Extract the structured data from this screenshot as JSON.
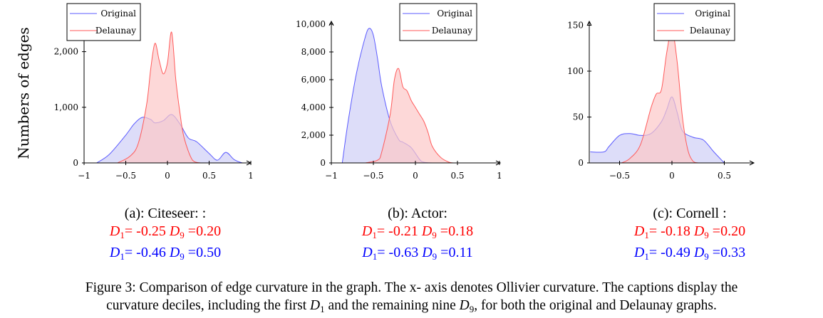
{
  "y_axis_label": "Numbers of edges",
  "legend": {
    "original": "Original",
    "delaunay": "Delaunay"
  },
  "colors": {
    "original_line": "#5b5bff",
    "original_fill": "#cfcff7",
    "delaunay_line": "#ff5a5a",
    "delaunay_fill": "#fcc7c7"
  },
  "panels": [
    {
      "caption": "(a): Citeseer: :",
      "delaunay_stats": {
        "d1": "-0.25",
        "d9": "0.20"
      },
      "original_stats": {
        "d1": "-0.46",
        "d9": "0.50"
      }
    },
    {
      "caption": "(b): Actor:",
      "delaunay_stats": {
        "d1": "-0.21",
        "d9": "0.18"
      },
      "original_stats": {
        "d1": "-0.63",
        "d9": "0.11"
      }
    },
    {
      "caption": "(c): Cornell :",
      "delaunay_stats": {
        "d1": "-0.18",
        "d9": "0.20"
      },
      "original_stats": {
        "d1": "-0.49",
        "d9": "0.33"
      }
    }
  ],
  "figure_caption": {
    "line1": "Figure 3: Comparison of edge curvature in the graph. The x- axis denotes Ollivier curvature. The captions display the",
    "line2_a": "curvature deciles, including the first ",
    "line2_b": " and the remaining nine ",
    "line2_c": ", for both the original and Delaunay graphs.",
    "d1_symbol": "D",
    "d1_sub": "1",
    "d9_symbol": "D",
    "d9_sub": "9"
  },
  "chart_data": [
    {
      "type": "area",
      "title": "(a): Citeseer: :",
      "xlabel": "",
      "ylabel": "Numbers of edges",
      "xlim": [
        -1,
        1
      ],
      "ylim": [
        0,
        2000
      ],
      "xticks": [
        -1,
        -0.5,
        0,
        0.5,
        1
      ],
      "xtick_labels": [
        "−1",
        "−0.5",
        "0",
        "0.5",
        "1"
      ],
      "yticks": [
        0,
        1000,
        2000
      ],
      "ytick_labels": [
        "0",
        "1,000",
        "2,000"
      ],
      "legend_position": "top",
      "series": [
        {
          "name": "Original",
          "x": [
            -0.85,
            -0.7,
            -0.5,
            -0.4,
            -0.3,
            -0.2,
            -0.15,
            -0.05,
            0.05,
            0.15,
            0.25,
            0.35,
            0.5,
            0.6,
            0.7,
            0.8,
            0.9,
            0.95
          ],
          "values": [
            0,
            150,
            500,
            700,
            820,
            780,
            720,
            760,
            870,
            700,
            450,
            380,
            170,
            50,
            190,
            60,
            0,
            0
          ]
        },
        {
          "name": "Delaunay",
          "x": [
            -0.6,
            -0.45,
            -0.35,
            -0.25,
            -0.2,
            -0.15,
            -0.1,
            -0.05,
            0,
            0.05,
            0.1,
            0.15,
            0.2,
            0.3,
            0.4,
            0.5
          ],
          "values": [
            0,
            120,
            350,
            1050,
            1700,
            2150,
            1850,
            1600,
            1800,
            2350,
            1500,
            900,
            450,
            50,
            0,
            0
          ]
        }
      ]
    },
    {
      "type": "area",
      "title": "(b): Actor:",
      "xlabel": "",
      "ylabel": "",
      "xlim": [
        -1,
        1
      ],
      "ylim": [
        0,
        10000
      ],
      "xticks": [
        -1,
        -0.5,
        0,
        0.5,
        1
      ],
      "xtick_labels": [
        "−1",
        "−0.5",
        "0",
        "0.5",
        "1"
      ],
      "yticks": [
        0,
        2000,
        4000,
        6000,
        8000,
        10000
      ],
      "ytick_labels": [
        "0",
        "2,000",
        "4,000",
        "6,000",
        "8,000",
        "10,000"
      ],
      "legend_position": "top-right",
      "series": [
        {
          "name": "Original",
          "x": [
            -0.87,
            -0.8,
            -0.7,
            -0.6,
            -0.55,
            -0.5,
            -0.45,
            -0.4,
            -0.3,
            -0.2,
            -0.15,
            -0.05,
            0.05,
            0.1,
            0.2,
            0.3
          ],
          "values": [
            0,
            3000,
            6500,
            9000,
            9700,
            9200,
            7500,
            5500,
            3000,
            1700,
            1500,
            1100,
            250,
            50,
            0,
            0
          ]
        },
        {
          "name": "Delaunay",
          "x": [
            -0.6,
            -0.45,
            -0.4,
            -0.3,
            -0.25,
            -0.2,
            -0.15,
            -0.1,
            -0.05,
            0,
            0.05,
            0.1,
            0.15,
            0.2,
            0.3,
            0.4,
            0.45
          ],
          "values": [
            0,
            200,
            800,
            3500,
            6000,
            6800,
            5500,
            5200,
            4500,
            4000,
            3500,
            3000,
            2200,
            1200,
            400,
            50,
            0
          ]
        }
      ]
    },
    {
      "type": "area",
      "title": "(c): Cornell :",
      "xlabel": "",
      "ylabel": "",
      "xlim": [
        -0.8,
        0.85
      ],
      "ylim": [
        0,
        150
      ],
      "xticks": [
        -0.5,
        0,
        0.5
      ],
      "xtick_labels": [
        "−0.5",
        "0",
        "0.5"
      ],
      "yticks": [
        0,
        50,
        100,
        150
      ],
      "ytick_labels": [
        "0",
        "50",
        "100",
        "150"
      ],
      "legend_position": "top-right",
      "series": [
        {
          "name": "Original",
          "x": [
            -0.78,
            -0.65,
            -0.6,
            -0.5,
            -0.4,
            -0.3,
            -0.2,
            -0.1,
            -0.05,
            0,
            0.05,
            0.1,
            0.2,
            0.3,
            0.4,
            0.5
          ],
          "values": [
            12,
            12,
            18,
            30,
            32,
            30,
            32,
            45,
            58,
            72,
            55,
            35,
            28,
            25,
            12,
            0
          ]
        },
        {
          "name": "Delaunay",
          "x": [
            -0.48,
            -0.4,
            -0.3,
            -0.2,
            -0.15,
            -0.1,
            -0.05,
            0,
            0.05,
            0.1,
            0.15,
            0.2,
            0.25,
            0.3
          ],
          "values": [
            0,
            5,
            20,
            60,
            75,
            80,
            120,
            145,
            110,
            50,
            15,
            2,
            0,
            0
          ]
        }
      ]
    }
  ]
}
